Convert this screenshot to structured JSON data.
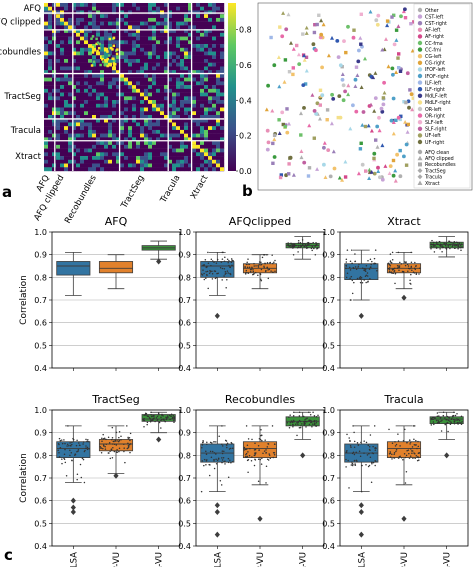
{
  "panel_labels": {
    "a": "a",
    "b": "b",
    "c": "c"
  },
  "heatmap": {
    "row_labels": [
      "AFQ",
      "AFQ clipped",
      "Recobundles",
      "TractSeg",
      "Tracula",
      "Xtract"
    ],
    "col_labels": [
      "AFQ",
      "AFQ clipped",
      "Recobundles",
      "TractSeg",
      "Tracula",
      "Xtract"
    ],
    "colorbar_ticks": [
      "0.8",
      "0.6",
      "0.4",
      "0.2",
      "0.0"
    ],
    "colors": [
      "#440154",
      "#3b528b",
      "#21918c",
      "#5ec962",
      "#fde725"
    ]
  },
  "embedding": {
    "legend_tracts": [
      {
        "label": "Other",
        "color": "#b0b0b0"
      },
      {
        "label": "CST-left",
        "color": "#c6a3d6"
      },
      {
        "label": "CST-right",
        "color": "#9a7fb8"
      },
      {
        "label": "AF-left",
        "color": "#e88fb6"
      },
      {
        "label": "AF-right",
        "color": "#d4488a"
      },
      {
        "label": "CC-fmа",
        "color": "#6dc06a"
      },
      {
        "label": "CC-fmi",
        "color": "#3a9a3e"
      },
      {
        "label": "CG-left",
        "color": "#f2c26b"
      },
      {
        "label": "CG-right",
        "color": "#e0a43a"
      },
      {
        "label": "IFOF-left",
        "color": "#a8d8e8"
      },
      {
        "label": "IFOF-right",
        "color": "#4fa0c8"
      },
      {
        "label": "ILF-left",
        "color": "#a0b8e8"
      },
      {
        "label": "ILF-right",
        "color": "#3058b0"
      },
      {
        "label": "MdLF-left",
        "color": "#3a3a8a"
      },
      {
        "label": "MdLF-right",
        "color": "#f4e08a"
      },
      {
        "label": "OR-left",
        "color": "#c8c8c8"
      },
      {
        "label": "OR-right",
        "color": "#e86aa8"
      },
      {
        "label": "SLF-left",
        "color": "#f0b0d0"
      },
      {
        "label": "SLF-right",
        "color": "#c060a0"
      },
      {
        "label": "UF-left",
        "color": "#a0a060"
      },
      {
        "label": "UF-right",
        "color": "#707040"
      }
    ],
    "legend_methods": [
      "AFQ clean",
      "AFQ clipped",
      "Recobundles",
      "TractSeg",
      "Tracula",
      "Xtract"
    ]
  },
  "chart_data": [
    {
      "type": "box",
      "title": "AFQ",
      "categories": [
        "HCP-BLSA",
        "HCP-VU",
        "BLSA-VU"
      ],
      "ylabel": "Correlation",
      "ylim": [
        0.4,
        1.0
      ],
      "yticks": [
        "1.0",
        "0.9",
        "0.8",
        "0.7",
        "0.6",
        "0.5",
        "0.4"
      ],
      "boxes": [
        {
          "min": 0.72,
          "q1": 0.81,
          "median": 0.85,
          "q3": 0.87,
          "max": 0.91,
          "outliers": []
        },
        {
          "min": 0.75,
          "q1": 0.82,
          "median": 0.84,
          "q3": 0.87,
          "max": 0.9,
          "outliers": []
        },
        {
          "min": 0.88,
          "q1": 0.92,
          "median": 0.93,
          "q3": 0.94,
          "max": 0.96,
          "outliers": [
            0.87
          ]
        }
      ],
      "swarm": false
    },
    {
      "type": "box",
      "title": "AFQclipped",
      "categories": [
        "HCP-BLSA",
        "HCP-VU",
        "BLSA-VU"
      ],
      "ylabel": "",
      "ylim": [
        0.4,
        1.0
      ],
      "yticks": [
        "1.0",
        "0.9",
        "0.8",
        "0.7",
        "0.6",
        "0.5",
        "0.4"
      ],
      "boxes": [
        {
          "min": 0.72,
          "q1": 0.8,
          "median": 0.85,
          "q3": 0.87,
          "max": 0.91,
          "outliers": [
            0.63
          ]
        },
        {
          "min": 0.75,
          "q1": 0.82,
          "median": 0.84,
          "q3": 0.86,
          "max": 0.9,
          "outliers": []
        },
        {
          "min": 0.88,
          "q1": 0.93,
          "median": 0.94,
          "q3": 0.95,
          "max": 0.98,
          "outliers": []
        }
      ],
      "swarm": true
    },
    {
      "type": "box",
      "title": "Xtract",
      "categories": [
        "HCP-BLSA",
        "HCP-VU",
        "BLSA-VU"
      ],
      "ylabel": "",
      "ylim": [
        0.4,
        1.0
      ],
      "yticks": [
        "1.0",
        "0.9",
        "0.8",
        "0.7",
        "0.6",
        "0.5",
        "0.4"
      ],
      "boxes": [
        {
          "min": 0.7,
          "q1": 0.79,
          "median": 0.84,
          "q3": 0.86,
          "max": 0.92,
          "outliers": [
            0.63
          ]
        },
        {
          "min": 0.75,
          "q1": 0.82,
          "median": 0.84,
          "q3": 0.86,
          "max": 0.91,
          "outliers": [
            0.71
          ]
        },
        {
          "min": 0.89,
          "q1": 0.93,
          "median": 0.945,
          "q3": 0.955,
          "max": 0.98,
          "outliers": []
        }
      ],
      "swarm": true
    },
    {
      "type": "box",
      "title": "TractSeg",
      "categories": [
        "HCP-BLSA",
        "HCP-VU",
        "BLSA-VU"
      ],
      "ylabel": "Correlation",
      "ylim": [
        0.4,
        1.0
      ],
      "yticks": [
        "1.0",
        "0.9",
        "0.8",
        "0.7",
        "0.6",
        "0.5",
        "0.4"
      ],
      "boxes": [
        {
          "min": 0.68,
          "q1": 0.79,
          "median": 0.83,
          "q3": 0.86,
          "max": 0.93,
          "outliers": [
            0.6,
            0.57,
            0.55
          ]
        },
        {
          "min": 0.72,
          "q1": 0.82,
          "median": 0.85,
          "q3": 0.87,
          "max": 0.93,
          "outliers": [
            0.71
          ]
        },
        {
          "min": 0.9,
          "q1": 0.95,
          "median": 0.96,
          "q3": 0.98,
          "max": 0.99,
          "outliers": [
            0.87
          ]
        }
      ],
      "swarm": true
    },
    {
      "type": "box",
      "title": "Recobundles",
      "categories": [
        "HCP-BLSA",
        "HCP-VU",
        "BLSA-VU"
      ],
      "ylabel": "",
      "ylim": [
        0.4,
        1.0
      ],
      "yticks": [
        "1.0",
        "0.9",
        "0.8",
        "0.7",
        "0.6",
        "0.5",
        "0.4"
      ],
      "boxes": [
        {
          "min": 0.64,
          "q1": 0.77,
          "median": 0.81,
          "q3": 0.85,
          "max": 0.93,
          "outliers": [
            0.58,
            0.55,
            0.45
          ]
        },
        {
          "min": 0.67,
          "q1": 0.79,
          "median": 0.83,
          "q3": 0.86,
          "max": 0.93,
          "outliers": [
            0.52
          ]
        },
        {
          "min": 0.87,
          "q1": 0.93,
          "median": 0.95,
          "q3": 0.97,
          "max": 0.99,
          "outliers": [
            0.8
          ]
        }
      ],
      "swarm": true
    },
    {
      "type": "box",
      "title": "Tracula",
      "categories": [
        "HCP-BLSA",
        "HCP-VU",
        "BLSA-VU"
      ],
      "ylabel": "",
      "ylim": [
        0.4,
        1.0
      ],
      "yticks": [
        "1.0",
        "0.9",
        "0.8",
        "0.7",
        "0.6",
        "0.5",
        "0.4"
      ],
      "boxes": [
        {
          "min": 0.64,
          "q1": 0.77,
          "median": 0.81,
          "q3": 0.85,
          "max": 0.93,
          "outliers": [
            0.58,
            0.55,
            0.45
          ]
        },
        {
          "min": 0.67,
          "q1": 0.79,
          "median": 0.83,
          "q3": 0.86,
          "max": 0.93,
          "outliers": [
            0.52
          ]
        },
        {
          "min": 0.87,
          "q1": 0.94,
          "median": 0.96,
          "q3": 0.97,
          "max": 0.99,
          "outliers": [
            0.8
          ]
        }
      ],
      "swarm": true
    }
  ],
  "box_colors": [
    "#3274a1",
    "#e1812c",
    "#3a923a"
  ]
}
